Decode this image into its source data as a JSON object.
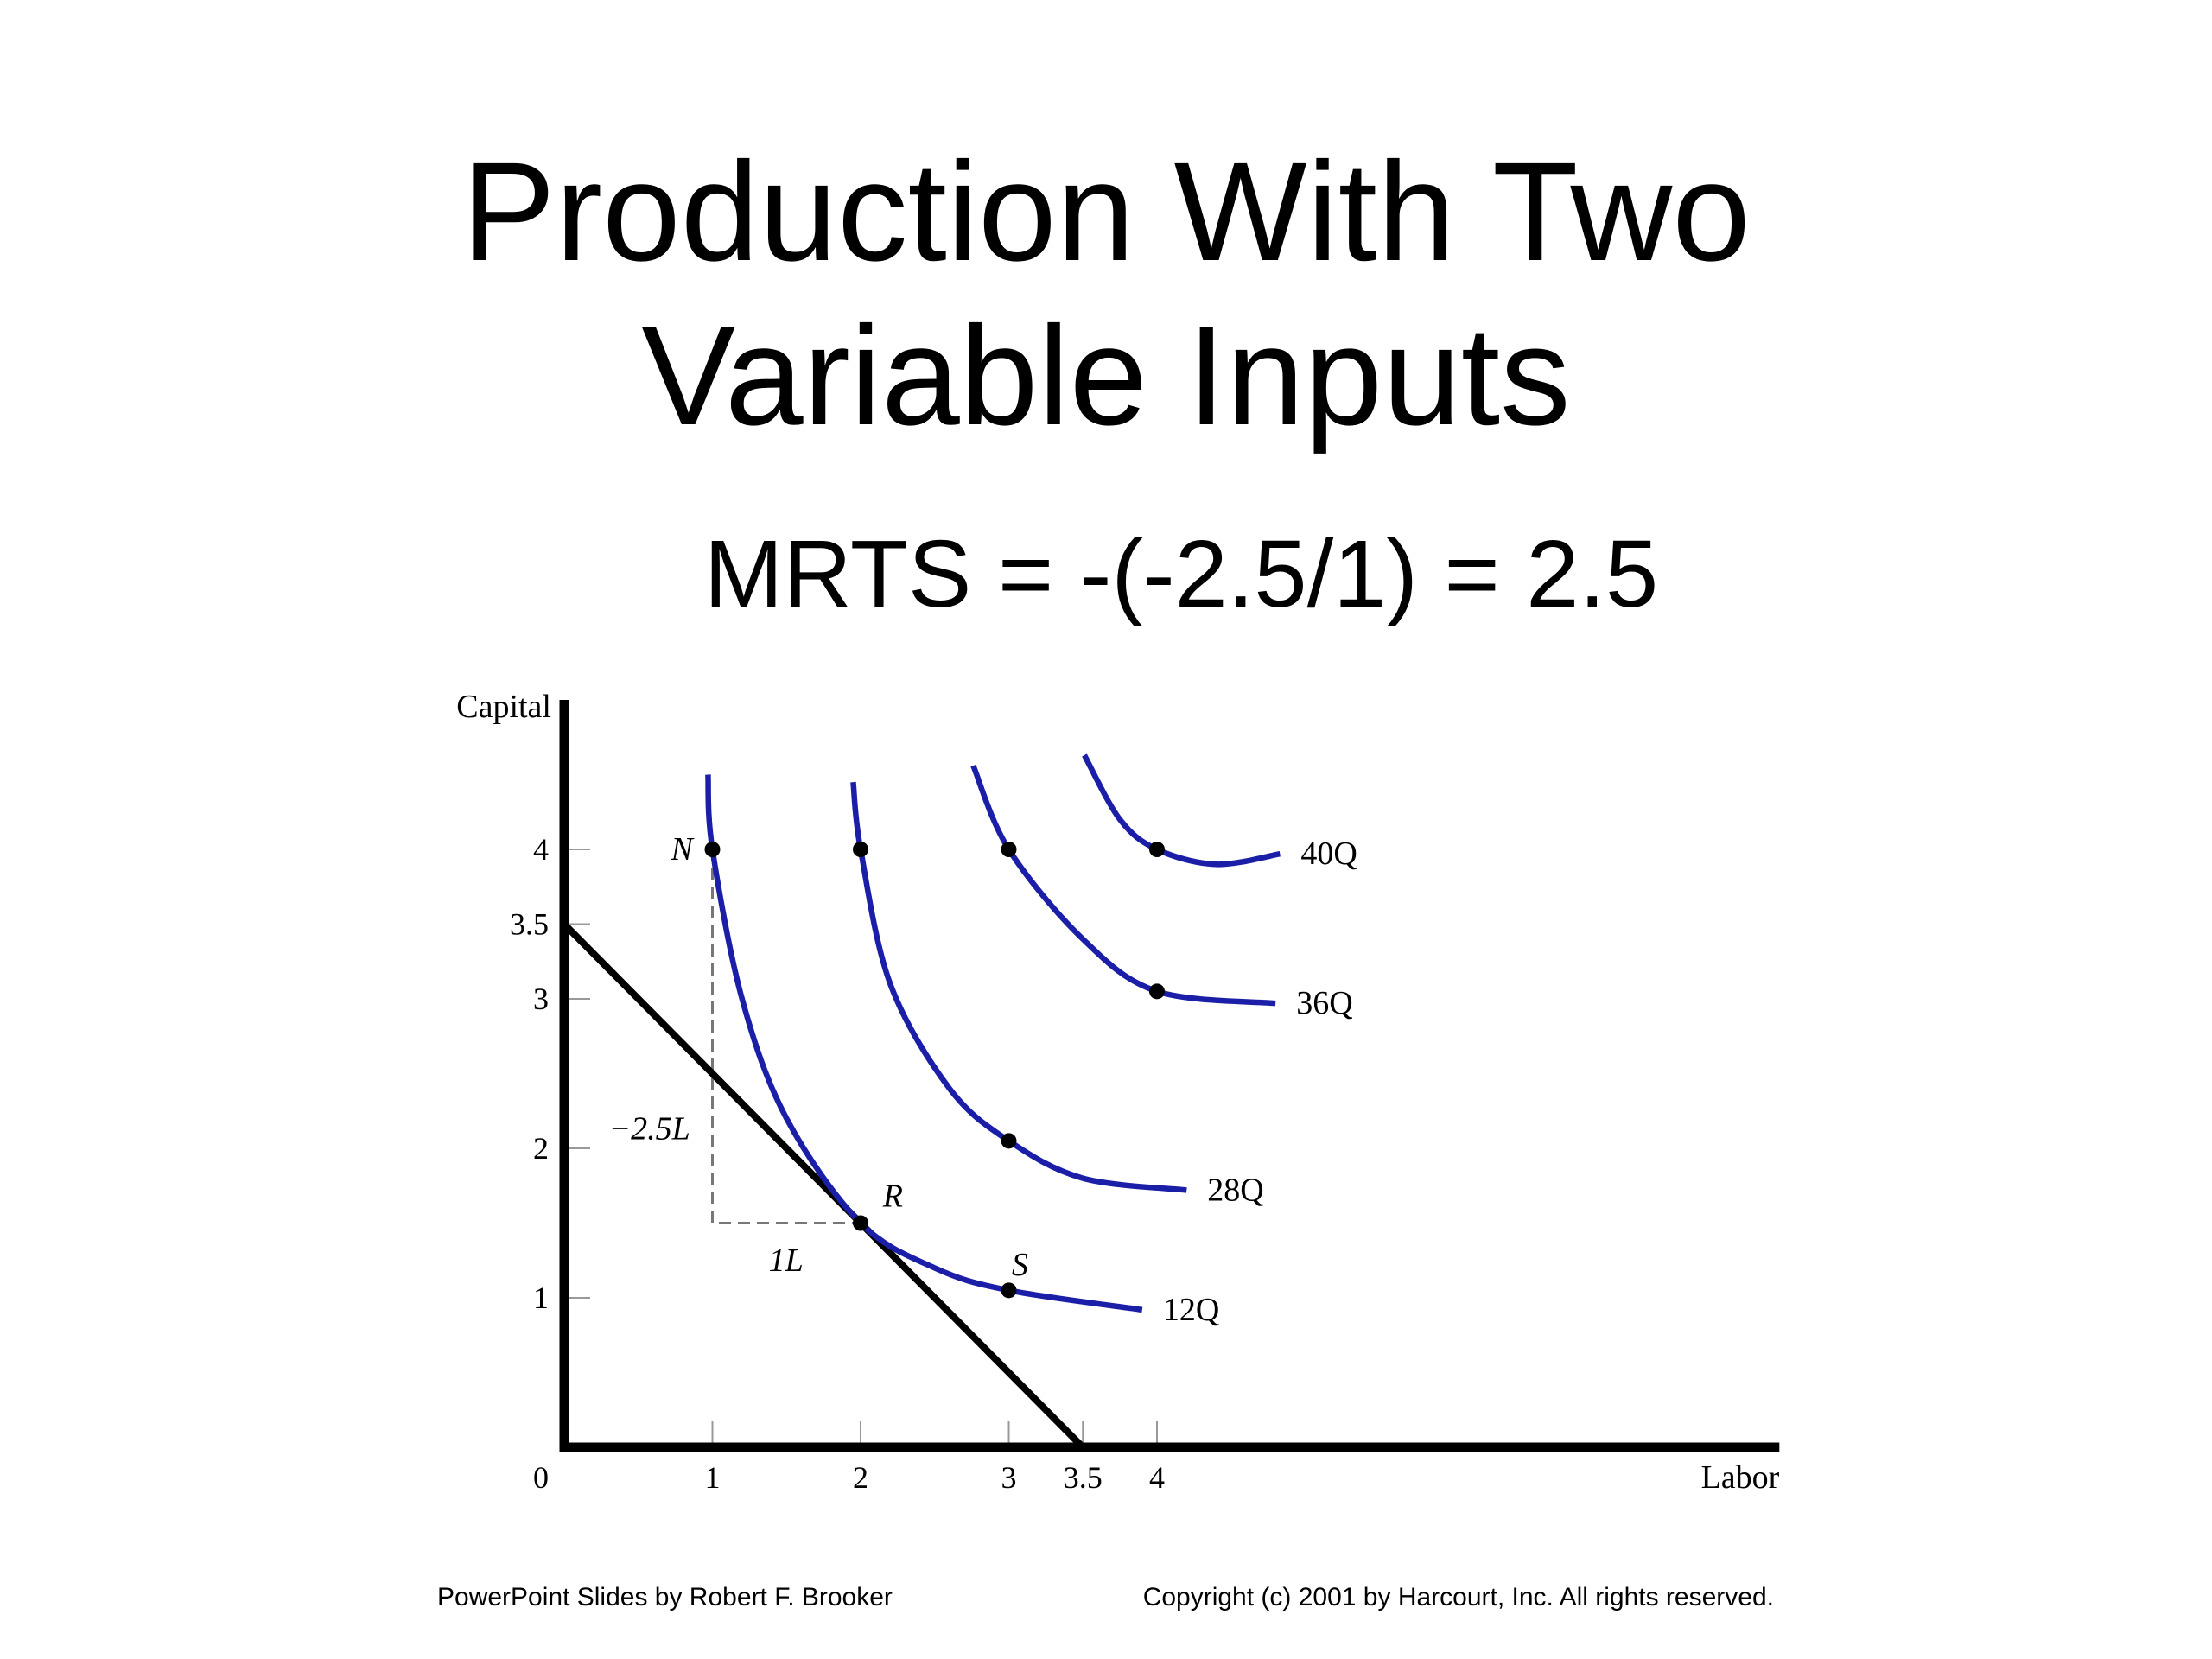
{
  "chart_data": {
    "type": "line",
    "title": "Production With Two Variable Inputs",
    "subtitle": "MRTS = -(-2.5/1) = 2.5",
    "xlabel": "Labor",
    "ylabel": "Capital",
    "xlim": [
      0,
      8.2
    ],
    "ylim": [
      0,
      5
    ],
    "xticks": [
      0,
      1,
      2,
      3,
      3.5,
      4
    ],
    "yticks": [
      1,
      2,
      3,
      3.5,
      4
    ],
    "grid": false,
    "series": [
      {
        "name": "12Q",
        "color": "#1b1fa8",
        "x": [
          0.97,
          1,
          1.2,
          1.5,
          2,
          2.5,
          3,
          3.9
        ],
        "values": [
          4.5,
          4,
          3,
          2.2,
          1.5,
          1.2,
          1.05,
          0.92
        ]
      },
      {
        "name": "28Q",
        "color": "#1b1fa8",
        "x": [
          1.95,
          2,
          2.2,
          2.6,
          3,
          3.5,
          4.2
        ],
        "values": [
          4.45,
          4,
          3.1,
          2.4,
          2.05,
          1.8,
          1.72
        ]
      },
      {
        "name": "36Q",
        "color": "#1b1fa8",
        "x": [
          2.76,
          3,
          3.5,
          4,
          4.8
        ],
        "values": [
          4.56,
          4,
          3.4,
          3.05,
          2.97
        ]
      },
      {
        "name": "40Q",
        "color": "#1b1fa8",
        "x": [
          3.51,
          3.75,
          4,
          4.4,
          4.83
        ],
        "values": [
          4.63,
          4.2,
          4,
          3.9,
          3.97
        ]
      }
    ],
    "budget_line": {
      "color": "#000000",
      "x": [
        0,
        3.5
      ],
      "values": [
        3.5,
        0
      ]
    },
    "dashed_line": {
      "color": "#777777",
      "x": [
        1,
        1,
        2
      ],
      "values": [
        4,
        1.5,
        1.5
      ]
    },
    "points": {
      "color": "#000000",
      "x": [
        1,
        2,
        3,
        2,
        3,
        3,
        4,
        4
      ],
      "y": [
        4,
        1.5,
        1.05,
        4,
        2.05,
        4,
        3.05,
        4
      ]
    },
    "annotations": [
      "N",
      "R",
      "S",
      "−2.5L",
      "1L"
    ]
  },
  "footer": {
    "left": "PowerPoint Slides by Robert F. Brooker",
    "right": "Copyright (c) 2001 by Harcourt, Inc. All rights reserved."
  }
}
